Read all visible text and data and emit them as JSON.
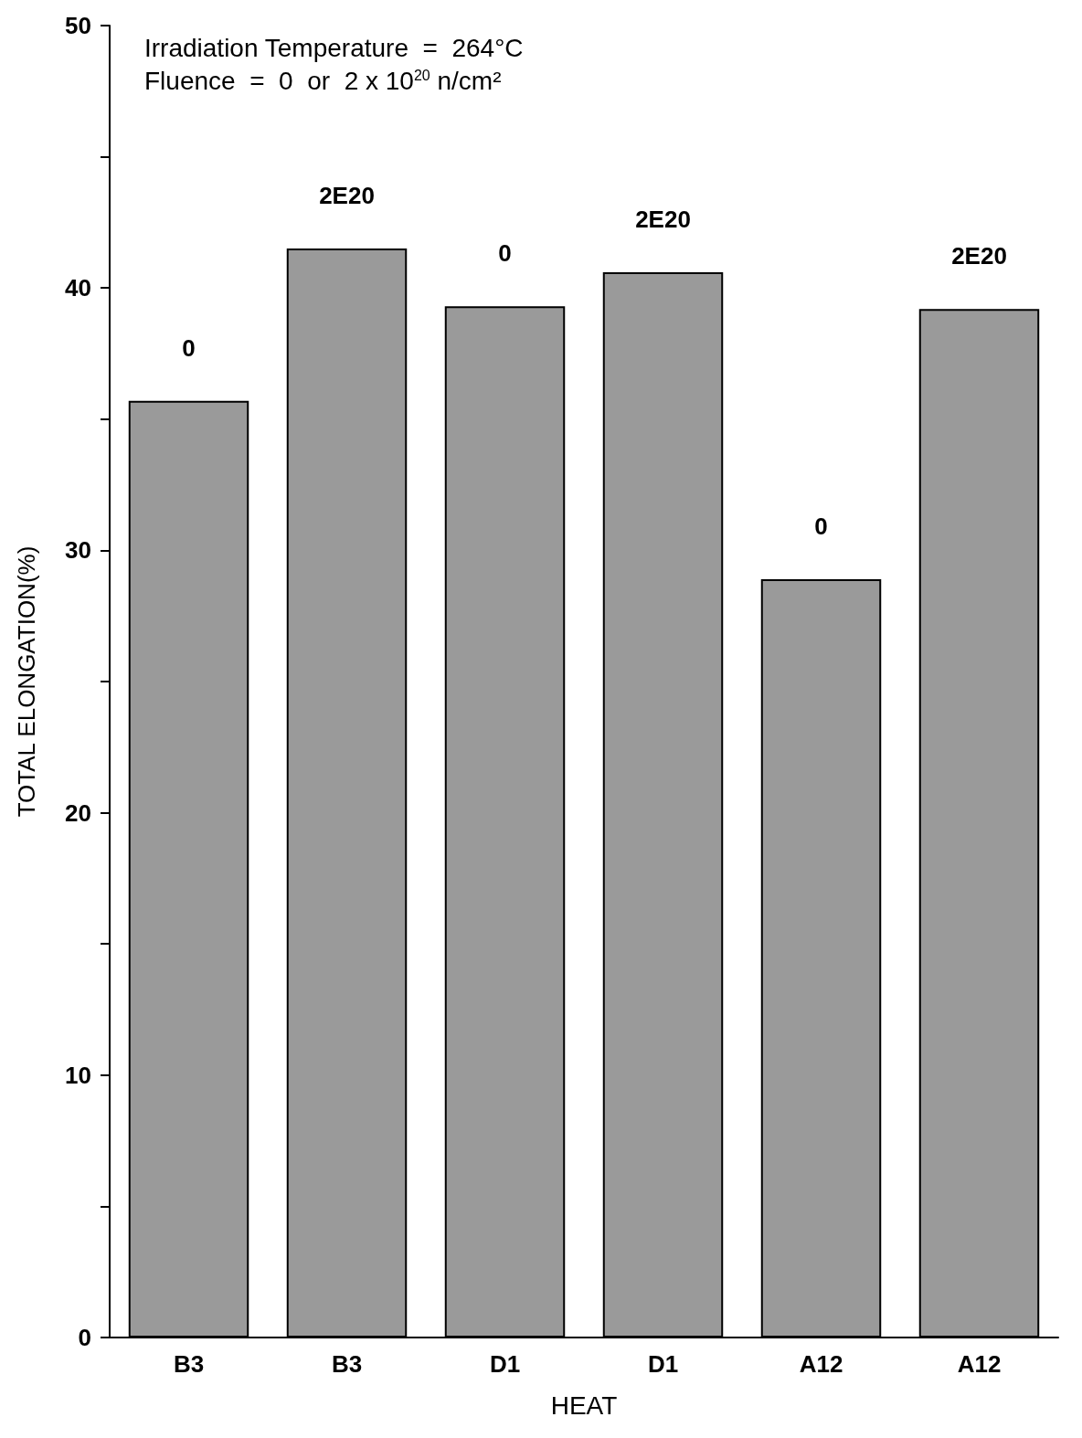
{
  "chart_data": {
    "type": "bar",
    "xlabel": "HEAT",
    "ylabel": "TOTAL ELONGATION(%)",
    "annotations": [
      "Irradiation Temperature  =  264°C",
      "Fluence  =  0  or  2 x 10$^{20}$ n/cm²"
    ],
    "categories": [
      "B3",
      "B3",
      "D1",
      "D1",
      "A12",
      "A12"
    ],
    "series": [
      {
        "name": "0",
        "color": "#9a9a9a",
        "values": [
          35.7,
          null,
          39.3,
          null,
          28.9,
          null
        ]
      },
      {
        "name": "2E20",
        "color": "#9a9a9a",
        "values": [
          null,
          41.5,
          null,
          40.6,
          null,
          39.2
        ]
      }
    ],
    "ylim": [
      0,
      50
    ],
    "yticks": [
      0,
      {
        "value": 5,
        "label": null
      },
      10,
      {
        "value": 15,
        "label": null
      },
      20,
      {
        "value": 25,
        "label": null
      },
      30,
      {
        "value": 35,
        "label": null
      },
      40,
      {
        "value": 45,
        "label": null
      },
      50
    ],
    "grid": false
  }
}
